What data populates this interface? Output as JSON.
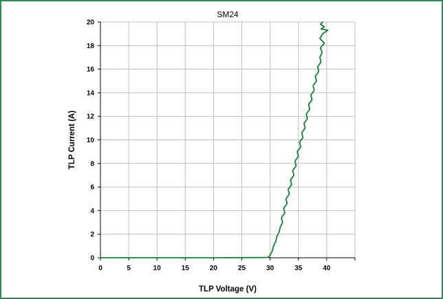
{
  "colors": {
    "frame": "#2e8b57",
    "series": "#1a7a3c",
    "grid": "#bfbfbf",
    "axis": "#000000"
  },
  "chart_data": {
    "type": "line",
    "title": "SM24",
    "xlabel": "TLP Voltage (V)",
    "ylabel": "TLP Current (A)",
    "xlim": [
      0,
      45
    ],
    "ylim": [
      0,
      20
    ],
    "x_ticks": [
      0,
      5,
      10,
      15,
      20,
      25,
      30,
      35,
      40
    ],
    "y_ticks": [
      0,
      2,
      4,
      6,
      8,
      10,
      12,
      14,
      16,
      18,
      20
    ],
    "grid": true,
    "legend": "none",
    "series": [
      {
        "x": [
          0,
          10,
          20,
          29.6,
          30.0,
          30.4,
          30.6,
          31.0,
          31.2,
          31.6,
          31.8,
          32.2,
          32.0,
          32.6,
          32.4,
          33.0,
          32.8,
          33.4,
          33.2,
          33.8,
          33.6,
          34.2,
          34.0,
          34.6,
          34.4,
          35.0,
          34.8,
          35.4,
          35.2,
          35.8,
          35.6,
          36.2,
          36.0,
          36.6,
          36.4,
          37.0,
          36.8,
          37.4,
          37.2,
          37.8,
          37.6,
          38.2,
          38.0,
          38.6,
          38.4,
          39.0,
          38.8,
          39.2,
          38.9,
          39.6,
          38.8,
          39.3,
          40.2,
          39.0,
          39.6,
          38.9,
          39.3
        ],
        "y": [
          0,
          0,
          0,
          0.02,
          0.2,
          0.6,
          1.0,
          1.4,
          1.8,
          2.2,
          2.6,
          3.0,
          3.4,
          3.8,
          4.2,
          4.6,
          5.0,
          5.4,
          5.8,
          6.2,
          6.6,
          7.0,
          7.4,
          7.8,
          8.2,
          8.6,
          9.0,
          9.4,
          9.8,
          10.2,
          10.6,
          11.0,
          11.4,
          11.8,
          12.2,
          12.6,
          13.0,
          13.4,
          13.8,
          14.2,
          14.6,
          15.0,
          15.4,
          15.8,
          16.2,
          16.6,
          17.0,
          17.4,
          17.8,
          18.2,
          18.6,
          19.0,
          19.3,
          19.4,
          19.6,
          19.8,
          20.0
        ]
      }
    ]
  }
}
